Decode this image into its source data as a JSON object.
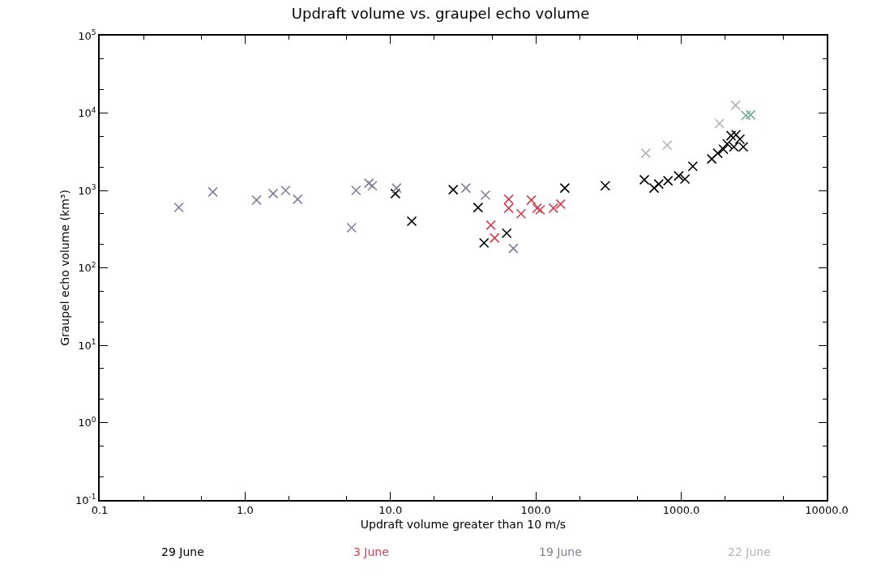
{
  "chart_data": {
    "type": "scatter",
    "title": "Updraft volume vs. graupel echo volume",
    "xlabel": "Updraft volume greater than 10 m/s",
    "ylabel": "Graupel echo volume (km³)",
    "log": "xy",
    "marker": "cross",
    "legend": false,
    "xlim": [
      0.1,
      10000
    ],
    "ylim": [
      0.1,
      100000
    ],
    "xticks": [
      {
        "value": 0.1,
        "label": "0.1"
      },
      {
        "value": 1,
        "label": "1.0"
      },
      {
        "value": 10,
        "label": "10.0"
      },
      {
        "value": 100,
        "label": "100.0"
      },
      {
        "value": 1000,
        "label": "1000.0"
      },
      {
        "value": 10000,
        "label": "10000.0"
      }
    ],
    "yticks": [
      {
        "value": 0.1,
        "label": "10$^{-1}$"
      },
      {
        "value": 1,
        "label": "10$^{0}$"
      },
      {
        "value": 10,
        "label": "10$^{1}$"
      },
      {
        "value": 100,
        "label": "10$^{2}$"
      },
      {
        "value": 1000,
        "label": "10$^{3}$"
      },
      {
        "value": 10000,
        "label": "10$^{4}$"
      },
      {
        "value": 100000,
        "label": "10$^{5}$"
      }
    ],
    "series": [
      {
        "name": "29 June",
        "color": "#000000",
        "x": [
          10.8,
          14,
          27,
          40,
          44,
          63,
          158,
          300,
          557,
          650,
          700,
          810,
          960,
          1060,
          1200,
          1620,
          1780,
          1950,
          2070,
          2200,
          2380,
          2530,
          2670,
          2300
        ],
        "values": [
          910,
          400,
          1020,
          600,
          210,
          280,
          1070,
          1150,
          1370,
          1070,
          1210,
          1330,
          1540,
          1400,
          2050,
          2550,
          3020,
          3400,
          4000,
          5100,
          5250,
          4600,
          3650,
          3650
        ]
      },
      {
        "name": "3 June",
        "color": "#d04050",
        "x": [
          65,
          65,
          79,
          93,
          102,
          107,
          132,
          148,
          49,
          52
        ],
        "values": [
          770,
          590,
          500,
          750,
          590,
          560,
          590,
          665,
          356,
          243
        ]
      },
      {
        "name": "19 June",
        "color": "#7f8096",
        "x": [
          0.35,
          0.6,
          1.2,
          1.56,
          1.9,
          2.3,
          5.4,
          5.8,
          7.1,
          7.5,
          11,
          33,
          45,
          70
        ],
        "values": [
          603,
          955,
          750,
          910,
          1000,
          770,
          330,
          1000,
          1240,
          1150,
          1070,
          1070,
          870,
          178
        ]
      },
      {
        "name": "22 June",
        "color": "#b4b4b4",
        "colors": [
          "#b4b4b4",
          "#b4b4b4",
          "#b4b4b4",
          "#b4b4b4",
          "#6fa898",
          "#6fa898"
        ],
        "x": [
          570,
          800,
          1830,
          2360,
          2780,
          3000
        ],
        "values": [
          3020,
          3830,
          7300,
          12600,
          9300,
          9500
        ]
      }
    ]
  }
}
